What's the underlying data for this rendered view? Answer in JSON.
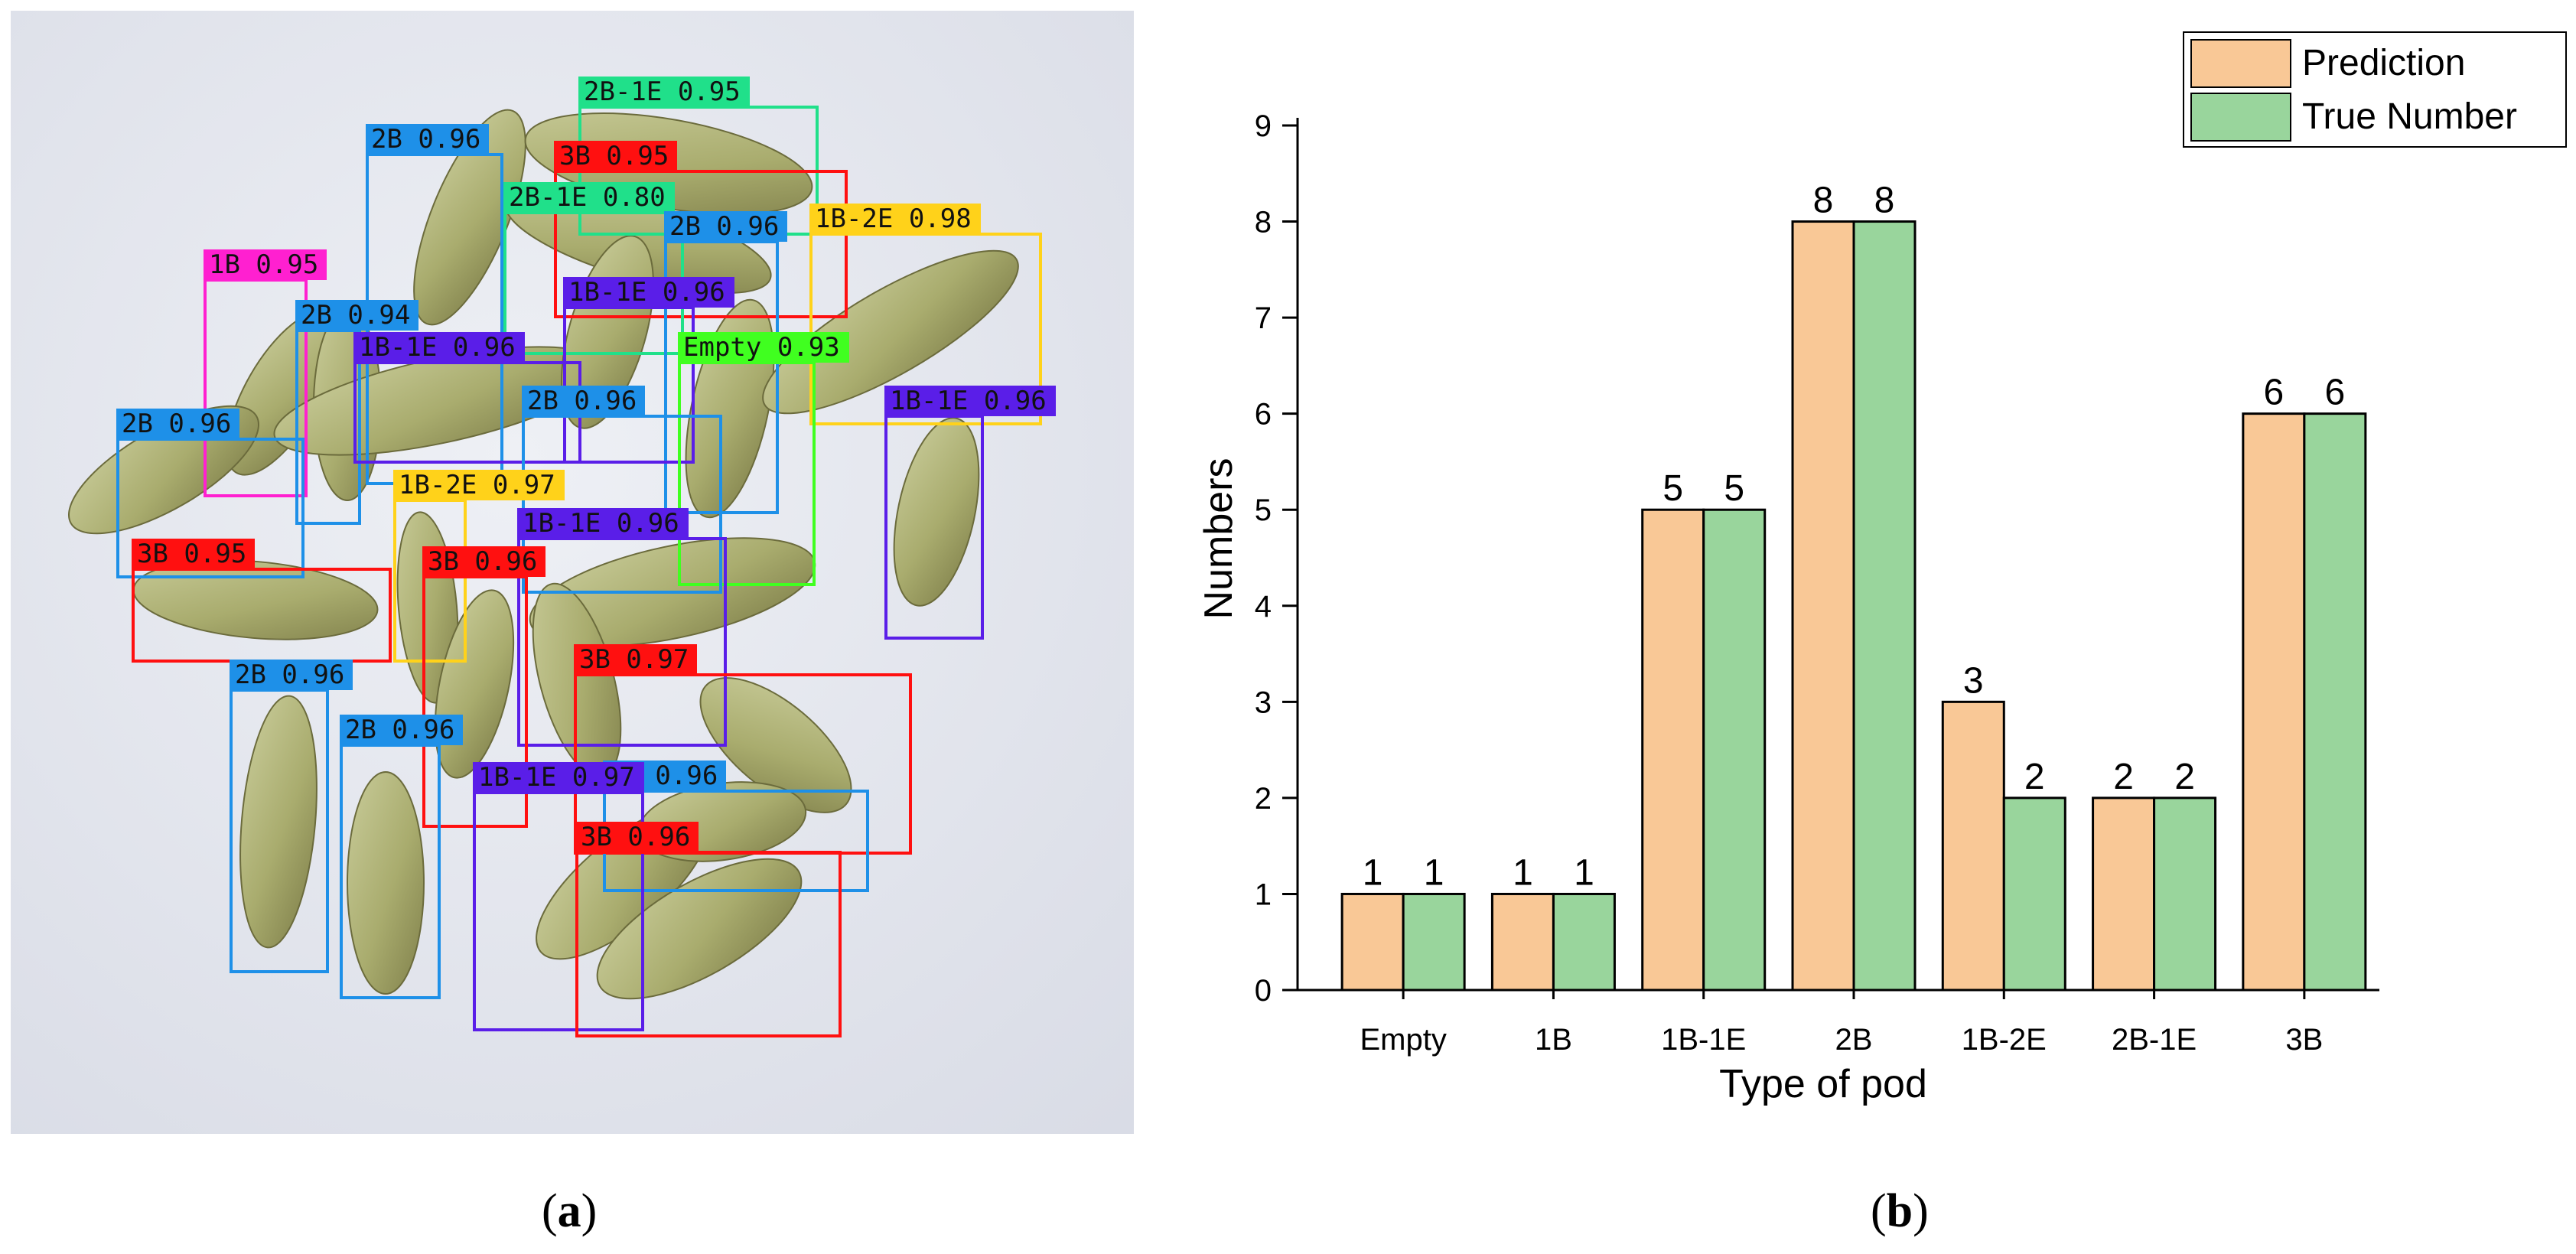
{
  "panel_a": {
    "caption_letter": "a",
    "detections": [
      {
        "label": "2B 0.96",
        "color": "#1e90e8"
      },
      {
        "label": "2B-1E 0.95",
        "color": "#20e08a"
      },
      {
        "label": "3B 0.95",
        "color": "#ff1010"
      },
      {
        "label": "2B-1E 0.80",
        "color": "#20e08a"
      },
      {
        "label": "2B 0.96",
        "color": "#1e90e8"
      },
      {
        "label": "1B-2E 0.98",
        "color": "#ffd21a"
      },
      {
        "label": "1B 0.95",
        "color": "#ff20d0"
      },
      {
        "label": "2B 0.94",
        "color": "#1e90e8"
      },
      {
        "label": "1B-1E 0.96",
        "color": "#5a1ee8"
      },
      {
        "label": "1B-1E 0.96",
        "color": "#5a1ee8"
      },
      {
        "label": "Empty 0.93",
        "color": "#40ff20"
      },
      {
        "label": "2B 0.96",
        "color": "#1e90e8"
      },
      {
        "label": "1B-1E 0.96",
        "color": "#5a1ee8"
      },
      {
        "label": "2B 0.96",
        "color": "#1e90e8"
      },
      {
        "label": "1B-2E 0.97",
        "color": "#ffd21a"
      },
      {
        "label": "1B-1E 0.96",
        "color": "#5a1ee8"
      },
      {
        "label": "3B 0.95",
        "color": "#ff1010"
      },
      {
        "label": "3B 0.96",
        "color": "#ff1010"
      },
      {
        "label": "3B 0.97",
        "color": "#ff1010"
      },
      {
        "label": "2B 0.96",
        "color": "#1e90e8"
      },
      {
        "label": "2B 0.96",
        "color": "#1e90e8"
      },
      {
        "label": "2B 0.96",
        "color": "#1e90e8"
      },
      {
        "label": "1B-1E 0.97",
        "color": "#5a1ee8"
      },
      {
        "label": "3B 0.96",
        "color": "#ff1010"
      }
    ]
  },
  "panel_b": {
    "caption_letter": "b"
  },
  "chart_data": {
    "type": "bar",
    "title": "",
    "xlabel": "Type of pod",
    "ylabel": "Numbers",
    "categories": [
      "Empty",
      "1B",
      "1B-1E",
      "2B",
      "1B-2E",
      "2B-1E",
      "3B"
    ],
    "series": [
      {
        "name": "Prediction",
        "color": "#f9c896",
        "values": [
          1,
          1,
          5,
          8,
          3,
          2,
          6
        ]
      },
      {
        "name": "True Number",
        "color": "#99d59c",
        "values": [
          1,
          1,
          5,
          8,
          2,
          2,
          6
        ]
      }
    ],
    "ylim": [
      0,
      9
    ],
    "yticks": [
      0,
      1,
      2,
      3,
      4,
      5,
      6,
      7,
      8,
      9
    ],
    "data_labels": true,
    "legend_position": "top-right",
    "grid": false
  }
}
